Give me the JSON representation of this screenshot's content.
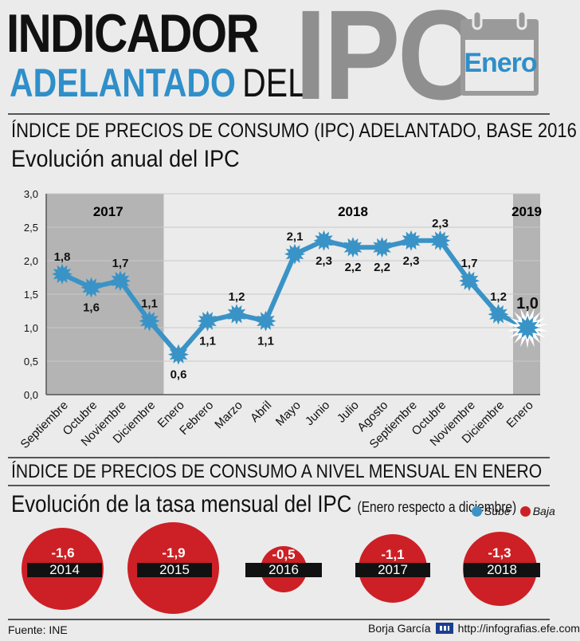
{
  "header": {
    "line1": "INDICADOR",
    "line2_blue": "ADELANTADO",
    "line2_black": "DEL",
    "big": "IPC",
    "calendar_month": "Enero",
    "calendar_icon": "calendar-icon"
  },
  "section1": {
    "subtitle": "ÍNDICE DE PRECIOS  DE CONSUMO (IPC) ADELANTADO, BASE 2016",
    "title": "Evolución anual del IPC"
  },
  "chart_data": {
    "type": "line",
    "title": "Evolución anual del IPC",
    "categories": [
      "Septiembre",
      "Octubre",
      "Noviembre",
      "Diciembre",
      "Enero",
      "Febrero",
      "Marzo",
      "Abril",
      "Mayo",
      "Junio",
      "Julio",
      "Agosto",
      "Septiembre",
      "Octubre",
      "Noviembre",
      "Diciembre",
      "Enero"
    ],
    "values": [
      1.8,
      1.6,
      1.7,
      1.1,
      0.6,
      1.1,
      1.2,
      1.1,
      2.1,
      2.3,
      2.2,
      2.2,
      2.3,
      2.3,
      1.7,
      1.2,
      1.0
    ],
    "value_labels": [
      "1,8",
      "1,6",
      "1,7",
      "1,1",
      "0,6",
      "1,1",
      "1,2",
      "1,1",
      "2,1",
      "2,3",
      "2,2",
      "2,2",
      "2,3",
      "2,3",
      "1,7",
      "1,2",
      "1,0"
    ],
    "year_labels": [
      "2017",
      "2018",
      "2019"
    ],
    "yticks": [
      "0,0",
      "0,5",
      "1,0",
      "1,5",
      "2,0",
      "2,5",
      "3,0"
    ],
    "ylim": [
      0,
      3
    ],
    "line_color": "#3a93c6",
    "shade_color": "#b4b4b4"
  },
  "section2": {
    "subtitle": "ÍNDICE DE PRECIOS DE CONSUMO A NIVEL MENSUAL EN ENERO",
    "title": "Evolución de la tasa mensual del IPC",
    "note": "(Enero respecto a diciembre)",
    "legend_up": "Sube",
    "legend_down": "Baja",
    "up_color": "#3a93c6",
    "down_color": "#cc2026",
    "bubbles": [
      {
        "year": "2014",
        "value": "-1,6"
      },
      {
        "year": "2015",
        "value": "-1,9"
      },
      {
        "year": "2016",
        "value": "-0,5"
      },
      {
        "year": "2017",
        "value": "-1,1"
      },
      {
        "year": "2018",
        "value": "-1,3"
      }
    ]
  },
  "footer": {
    "source": "Fuente: INE",
    "author": "Borja García",
    "url": "http://infografias.efe.com"
  }
}
